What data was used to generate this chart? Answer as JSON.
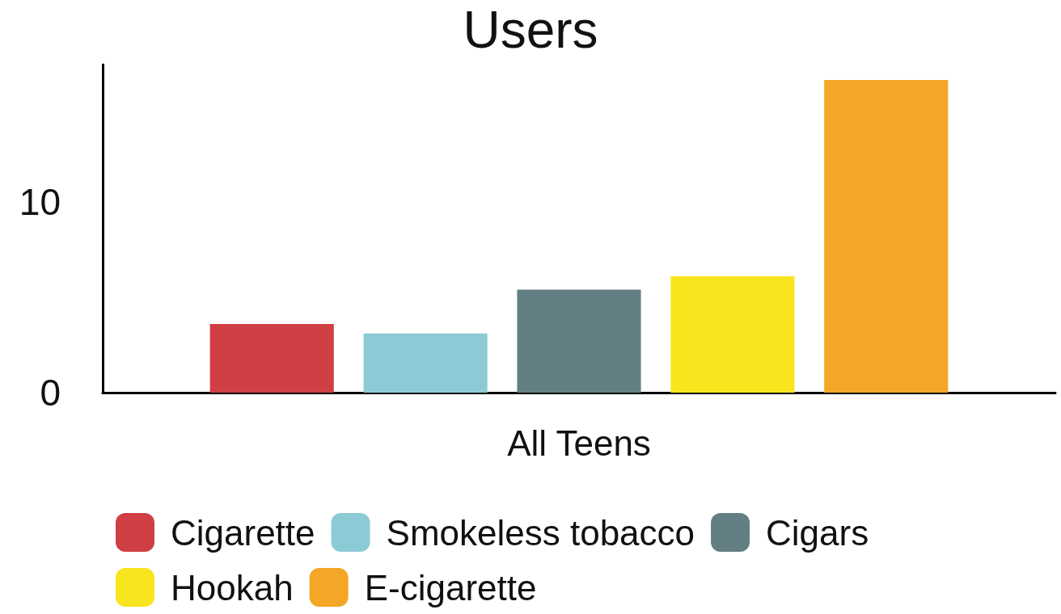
{
  "chart_data": {
    "type": "bar",
    "title": "Users",
    "categories": [
      "All Teens"
    ],
    "series": [
      {
        "name": "Cigarette",
        "color": "#d03f44",
        "values": [
          3.6
        ]
      },
      {
        "name": "Smokeless tobacco",
        "color": "#8ccbd5",
        "values": [
          3.1
        ]
      },
      {
        "name": "Cigars",
        "color": "#637f84",
        "values": [
          5.4
        ]
      },
      {
        "name": "Hookah",
        "color": "#f8e51d",
        "values": [
          6.1
        ]
      },
      {
        "name": "E-cigarette",
        "color": "#f4a626",
        "values": [
          16.4
        ]
      }
    ],
    "ylim": [
      0,
      17.2
    ],
    "yticks": [
      0,
      10
    ],
    "legend": "bottom"
  }
}
